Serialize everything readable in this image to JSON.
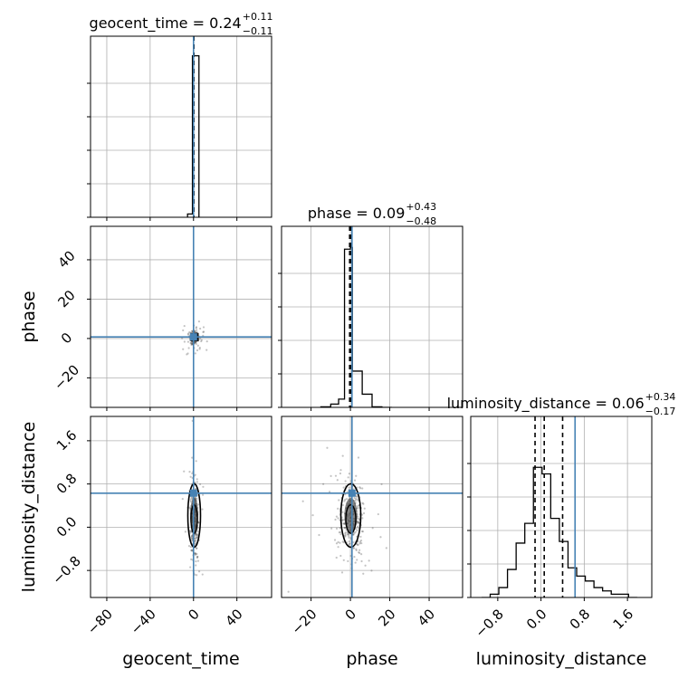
{
  "chart_data": {
    "type": "corner",
    "parameters": [
      "geocent_time",
      "phase",
      "luminosity_distance"
    ],
    "xlabels": [
      "geocent_time",
      "phase",
      "luminosity_distance"
    ],
    "ylabels": [
      "",
      "phase",
      "luminosity_distance"
    ],
    "truths": {
      "geocent_time": 0.0,
      "phase": 0.8,
      "luminosity_distance": 0.63
    },
    "colors": {
      "truth": "#4682b4",
      "hist": "#000000",
      "grid": "#b0b0b0",
      "scatter": "#555555"
    },
    "grid": true,
    "ranges": {
      "geocent_time": [
        -95,
        72
      ],
      "phase": [
        -35,
        57
      ],
      "luminosity_distance": [
        -1.3,
        2.05
      ]
    },
    "ticks": {
      "geocent_time": [
        -80,
        -40,
        0,
        40
      ],
      "phase": [
        -20,
        0,
        20,
        40
      ],
      "luminosity_distance": [
        -0.8,
        0.0,
        0.8,
        1.6
      ]
    },
    "tick_labels": {
      "geocent_time": [
        "−80",
        "−40",
        "0",
        "40"
      ],
      "phase": [
        "−20",
        "0",
        "20",
        "40"
      ],
      "luminosity_distance": [
        "−0.8",
        "0.0",
        "0.8",
        "1.6"
      ]
    },
    "titles": [
      {
        "param": "geocent_time",
        "prefix": "geocent_time = 0.24",
        "plus": "+0.11",
        "minus": "−0.11"
      },
      {
        "param": "phase",
        "prefix": "phase = 0.09",
        "plus": "+0.43",
        "minus": "−0.48"
      },
      {
        "param": "luminosity_distance",
        "prefix": "luminosity_distance = 0.06",
        "plus": "+0.34",
        "minus": "−0.17"
      }
    ],
    "quantiles": {
      "geocent_time": [
        0.13,
        0.24,
        0.35
      ],
      "phase": [
        -0.39,
        0.09,
        0.52
      ],
      "luminosity_distance": [
        -0.11,
        0.06,
        0.4
      ]
    },
    "histograms": {
      "geocent_time": {
        "edges": [
          -5.5,
          -1.0,
          0.0,
          5.0
        ],
        "counts": [
          0.02,
          0.98,
          0.98
        ]
      },
      "phase": {
        "edges": [
          -15,
          -10,
          -6,
          -3,
          0,
          1,
          6,
          11,
          16,
          21
        ],
        "counts": [
          0.003,
          0.02,
          0.05,
          0.96,
          0.97,
          0.22,
          0.08,
          0.003,
          0.0
        ]
      },
      "luminosity_distance": {
        "edges": [
          -1.1,
          -0.94,
          -0.78,
          -0.62,
          -0.46,
          -0.3,
          -0.14,
          0.02,
          0.18,
          0.34,
          0.5,
          0.66,
          0.82,
          0.98,
          1.14,
          1.3,
          1.46,
          1.62,
          1.78
        ],
        "counts": [
          0.0,
          0.02,
          0.06,
          0.17,
          0.33,
          0.45,
          0.79,
          0.75,
          0.48,
          0.34,
          0.18,
          0.13,
          0.1,
          0.06,
          0.04,
          0.02,
          0.02,
          0.0
        ]
      }
    },
    "hist_scale_max": 1.0
  }
}
